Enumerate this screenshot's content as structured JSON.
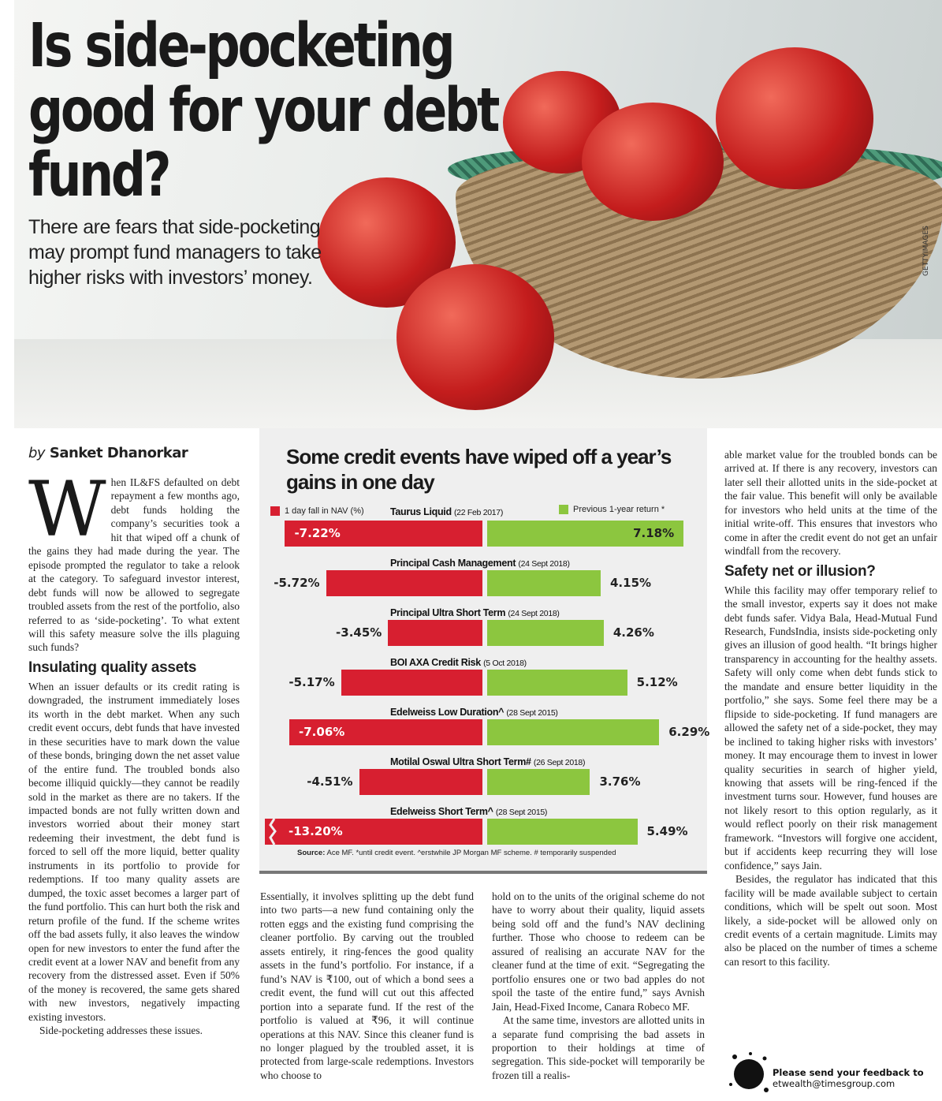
{
  "header": {
    "title": "Is side-pocketing good for your debt fund?",
    "subtitle": "There are fears that side-pocketing may prompt fund managers to take higher risks with investors’ money.",
    "photo_credit": "GETTYIMAGES"
  },
  "byline": {
    "prefix": "by",
    "author": "Sanket Dhanorkar"
  },
  "article": {
    "drop_cap": "W",
    "intro": "hen IL&FS defaulted on debt repayment a few months ago, debt funds holding the company’s securities took a hit that wiped off a chunk of the gains they had made during the year. The episode prompted the regulator to take a relook at the category. To safeguard investor interest, debt funds will now be allowed to segregate troubled assets from the rest of the portfolio, also referred to as ‘side-pocketing’. To what extent will this safety measure solve the ills plaguing such funds?",
    "heading1": "Insulating quality assets",
    "p1": "When an issuer defaults or its credit rating is downgraded, the instrument immediately loses its worth in the debt market. When any such credit event occurs, debt funds that have invested in these securities have to mark down the value of these bonds, bringing down the net asset value of the entire fund. The troubled bonds also become illiquid quickly—they cannot be readily sold in the market as there are no takers. If the impacted bonds are not fully written down and investors worried about their money start redeeming their investment, the debt fund is forced to sell off the more liquid, better quality instruments in its portfolio to provide for redemptions. If too many quality assets are dumped, the toxic asset becomes a larger part of the fund portfolio. This can hurt both the risk and return profile of the fund. If the scheme writes off the bad assets fully, it also leaves the window open for new investors to enter the fund after the credit event at a lower NAV and benefit from any recovery from the distressed asset. Even if 50% of the money is recovered, the same gets shared with new investors, negatively impacting existing investors.",
    "p2": "Side-pocketing addresses these issues.",
    "p3": "Essentially, it involves splitting up the debt fund into two parts—a new fund containing only the rotten eggs and the existing fund comprising the cleaner portfolio. By carving out the troubled assets entirely, it ring-fences the good quality assets in the fund’s portfolio. For instance, if a fund’s NAV is ₹100, out of which a bond sees a credit event, the fund will cut out this affected portion into a separate fund. If the rest of the portfolio is valued at ₹96, it will continue operations at this NAV. Since this cleaner fund is no longer plagued by the troubled asset, it is protected from large-scale redemptions. Investors who choose to",
    "p4": "hold on to the units of the original scheme do not have to worry about their quality, liquid assets being sold off and the fund’s NAV declining further. Those who choose to redeem can be assured of realising an accurate NAV for the cleaner fund at the time of exit. “Segregating the portfolio ensures one or two bad apples do not spoil the taste of the entire fund,” says Avnish Jain, Head-Fixed Income, Canara Robeco MF.",
    "p5": "At the same time, investors are allotted units in a separate fund comprising the bad assets in proportion to their holdings at time of segregation. This side-pocket will temporarily be frozen till a realis-",
    "p6": "able market value for the troubled bonds can be arrived at. If there is any recovery, investors can later sell their allotted units in the side-pocket at the fair value. This benefit will only be available for investors who held units at the time of the initial write-off. This ensures that investors who come in after the credit event do not get an unfair windfall from the recovery.",
    "heading2": "Safety net or illusion?",
    "p7": "While this facility may offer temporary relief to the small investor, experts say it does not make debt funds safer. Vidya Bala, Head-Mutual Fund Research, FundsIndia, insists side-pocketing only gives an illusion of good health. “It brings higher transparency in accounting for the healthy assets. Safety will only come when debt funds stick to the mandate and ensure better liquidity in the portfolio,” she says. Some feel there may be a flipside to side-pocketing. If fund managers are allowed the safety net of a side-pocket, they may be inclined to taking higher risks with investors’ money. It may encourage them to invest in lower quality securities in search of higher yield, knowing that assets will be ring-fenced if the investment turns sour. However, fund houses are not likely resort to this option regularly, as it would reflect poorly on their risk management framework. “Investors will forgive one accident, but if accidents keep recurring they will lose confidence,” says Jain.",
    "p8": "Besides, the regulator has indicated that this facility will be made available subject to certain conditions, which will be spelt out soon. Most likely, a side-pocket will be allowed only on credit events of a certain magnitude. Limits may also be placed on the number of times a scheme can resort to this facility."
  },
  "feedback": {
    "line1": "Please send your feedback to",
    "email": "etwealth@timesgroup.com"
  },
  "chart_data": {
    "type": "bar",
    "title": "Some credit events have wiped off a year’s gains in one day",
    "legend": [
      "1 day fall in NAV (%)",
      "Previous 1-year return *"
    ],
    "colors": {
      "fall": "#d71f30",
      "return": "#8cc63f"
    },
    "categories": [
      {
        "name": "Taurus Liquid",
        "date": "(22 Feb 2017)"
      },
      {
        "name": "Principal Cash Management",
        "date": "(24 Sept 2018)"
      },
      {
        "name": "Principal Ultra Short Term",
        "date": "(24 Sept 2018)"
      },
      {
        "name": "BOI AXA Credit Risk",
        "date": "(5 Oct 2018)"
      },
      {
        "name": "Edelweiss Low Duration^",
        "date": "(28 Sept 2015)"
      },
      {
        "name": "Motilal Oswal Ultra Short Term#",
        "date": "(26 Sept 2018)"
      },
      {
        "name": "Edelweiss Short Term^",
        "date": "(28 Sept 2015)"
      }
    ],
    "series": [
      {
        "name": "1 day fall in NAV (%)",
        "values": [
          -7.22,
          -5.72,
          -3.45,
          -5.17,
          -7.06,
          -4.51,
          -13.2
        ]
      },
      {
        "name": "Previous 1-year return *",
        "values": [
          7.18,
          4.15,
          4.26,
          5.12,
          6.29,
          3.76,
          5.49
        ]
      }
    ],
    "source_label": "Source:",
    "source": "Ace MF. *until credit event. ^erstwhile JP Morgan MF scheme. # temporarily suspended"
  }
}
